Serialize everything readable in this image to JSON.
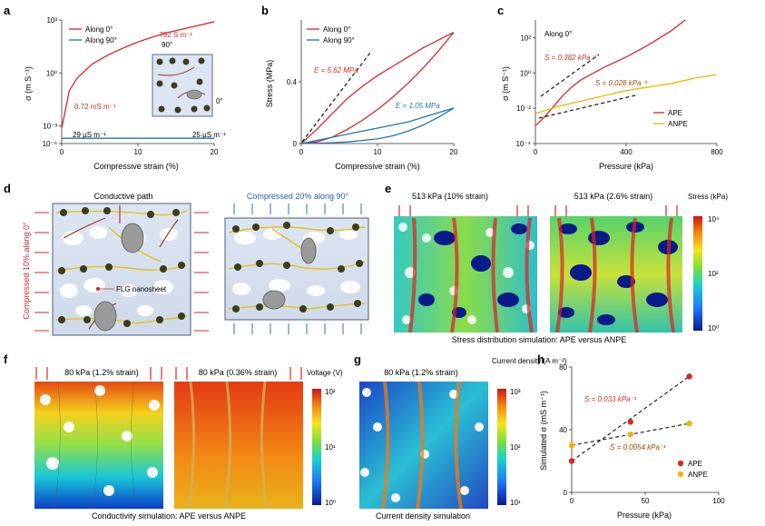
{
  "colors": {
    "red": "#d62728",
    "blue": "#1f77b4",
    "orange": "#f5b400",
    "dark_red": "#9b2222"
  },
  "panel_a": {
    "label": "a",
    "xlabel": "Compressive strain (%)",
    "ylabel": "σ (m S⁻¹)",
    "xticks": [
      "0",
      "10",
      "20"
    ],
    "yticks": [
      "10³",
      "10⁰",
      "10⁻³",
      "10⁻⁶"
    ],
    "legend": [
      "Along 0°",
      "Along 90°"
    ],
    "annotations": [
      "792 S m⁻¹",
      "0.72 mS m⁻¹",
      "29 µS m⁻¹",
      "25 µS m⁻¹"
    ],
    "inset_labels": [
      "90°",
      "0°"
    ],
    "chart_data": {
      "type": "line",
      "log_y": true,
      "xlim": [
        0,
        20
      ],
      "ylim_log10": [
        -4,
        3
      ],
      "series": [
        {
          "name": "Along 0°",
          "x": [
            0,
            1,
            2,
            4,
            6,
            8,
            10,
            12,
            14,
            16,
            18,
            20
          ],
          "log10_y": [
            -3.14,
            -1.0,
            -0.3,
            0.5,
            1.0,
            1.4,
            1.75,
            2.05,
            2.3,
            2.5,
            2.7,
            2.9
          ]
        },
        {
          "name": "Along 90°",
          "x": [
            0,
            5,
            10,
            15,
            20
          ],
          "log10_y": [
            -4.54,
            -4.55,
            -4.57,
            -4.58,
            -4.6
          ]
        }
      ]
    }
  },
  "panel_b": {
    "label": "b",
    "xlabel": "Compressive strain (%)",
    "ylabel": "Stress (MPa)",
    "xticks": [
      "0",
      "10",
      "20"
    ],
    "yticks": [
      "0",
      "0.4"
    ],
    "legend": [
      "Along 0°",
      "Along 90°"
    ],
    "annotations": [
      "E = 5.62 MPa",
      "E = 1.05 MPa"
    ],
    "chart_data": {
      "type": "line",
      "xlim": [
        0,
        20
      ],
      "ylim": [
        0,
        0.8
      ],
      "series": [
        {
          "name": "Along 0°",
          "x": [
            0,
            2,
            4,
            6,
            8,
            10,
            12,
            14,
            16,
            18,
            20,
            18,
            16,
            14,
            12,
            10,
            8,
            6,
            4,
            2,
            0
          ],
          "y": [
            0,
            0.09,
            0.19,
            0.29,
            0.37,
            0.44,
            0.5,
            0.56,
            0.62,
            0.67,
            0.72,
            0.6,
            0.49,
            0.39,
            0.3,
            0.22,
            0.15,
            0.09,
            0.04,
            0.01,
            0
          ]
        },
        {
          "name": "Along 90°",
          "x": [
            0,
            2,
            4,
            6,
            8,
            10,
            12,
            14,
            16,
            18,
            20,
            18,
            16,
            14,
            12,
            10,
            8,
            6,
            4,
            2,
            0
          ],
          "y": [
            0,
            0.02,
            0.04,
            0.06,
            0.08,
            0.1,
            0.12,
            0.14,
            0.17,
            0.2,
            0.23,
            0.17,
            0.12,
            0.08,
            0.05,
            0.03,
            0.02,
            0.01,
            0.005,
            0.002,
            0
          ]
        }
      ]
    }
  },
  "panel_c": {
    "label": "c",
    "xlabel": "Pressure (kPa)",
    "ylabel": "σ (m S⁻¹)",
    "xticks": [
      "0",
      "400",
      "800"
    ],
    "yticks": [
      "10²",
      "10⁰",
      "10⁻²",
      "10⁻⁴"
    ],
    "legend": [
      "APE",
      "ANPE"
    ],
    "title_text": "Along 0°",
    "annotations": [
      "S = 0.382 kPa⁻¹",
      "S = 0.028 kPa⁻¹"
    ],
    "chart_data": {
      "type": "line",
      "log_y": true,
      "xlim": [
        0,
        800
      ],
      "ylim_log10": [
        -4,
        3
      ],
      "series": [
        {
          "name": "APE",
          "x": [
            0,
            40,
            80,
            120,
            160,
            200,
            300,
            400,
            500,
            600,
            660
          ],
          "log10_y": [
            -3.0,
            -2.5,
            -1.9,
            -1.3,
            -0.8,
            -0.4,
            0.3,
            0.9,
            1.6,
            2.4,
            3.0
          ]
        },
        {
          "name": "ANPE",
          "x": [
            0,
            100,
            200,
            300,
            400,
            500,
            600,
            700,
            800
          ],
          "log10_y": [
            -2.3,
            -1.9,
            -1.6,
            -1.3,
            -1.0,
            -0.8,
            -0.6,
            -0.3,
            -0.1
          ]
        }
      ]
    }
  },
  "panel_d": {
    "label": "d",
    "title_left": "Conductive path",
    "title_right": "Compressed 20% along 90°",
    "side_label": "Compressed 10% along 0°",
    "nanosheet_label": "FLG nanosheet"
  },
  "panel_e": {
    "label": "e",
    "left_title": "513 kPa (10% strain)",
    "right_title": "513 kPa (2.6% strain)",
    "caption": "Stress distribution simulation: APE versus ANPE",
    "colorbar_title": "Stress (kPa)",
    "colorbar_ticks": [
      "10⁴",
      "10²",
      "10⁰"
    ]
  },
  "panel_f": {
    "label": "f",
    "left_title": "80 kPa (1.2% strain)",
    "right_title": "80 kPa (0.36% strain)",
    "caption": "Conductivity simulation: APE versus ANPE",
    "colorbar_title": "Voltage (V)",
    "colorbar_ticks": [
      "10²",
      "10¹",
      "10⁰"
    ]
  },
  "panel_g": {
    "label": "g",
    "title": "80 kPa (1.2% strain)",
    "caption": "Current density simulation",
    "colorbar_title": "Current density (A m⁻²)",
    "colorbar_ticks": [
      "10³",
      "10²",
      "10¹"
    ]
  },
  "panel_h": {
    "label": "h",
    "xlabel": "Pressure (kPa)",
    "ylabel": "Simulated σ (mS m⁻¹)",
    "xticks": [
      "0",
      "50",
      "100"
    ],
    "yticks": [
      "80",
      "40",
      "0"
    ],
    "legend": [
      "APE",
      "ANPE"
    ],
    "annotations": [
      "S = 0.033 kPa⁻¹",
      "S = 0.0054 kPa⁻¹"
    ],
    "chart_data": {
      "type": "scatter",
      "xlim": [
        0,
        100
      ],
      "ylim": [
        0,
        80
      ],
      "series": [
        {
          "name": "APE",
          "x": [
            0,
            40,
            80
          ],
          "y": [
            20,
            45,
            74
          ]
        },
        {
          "name": "ANPE",
          "x": [
            0,
            40,
            80
          ],
          "y": [
            30,
            37,
            44
          ]
        }
      ]
    }
  }
}
